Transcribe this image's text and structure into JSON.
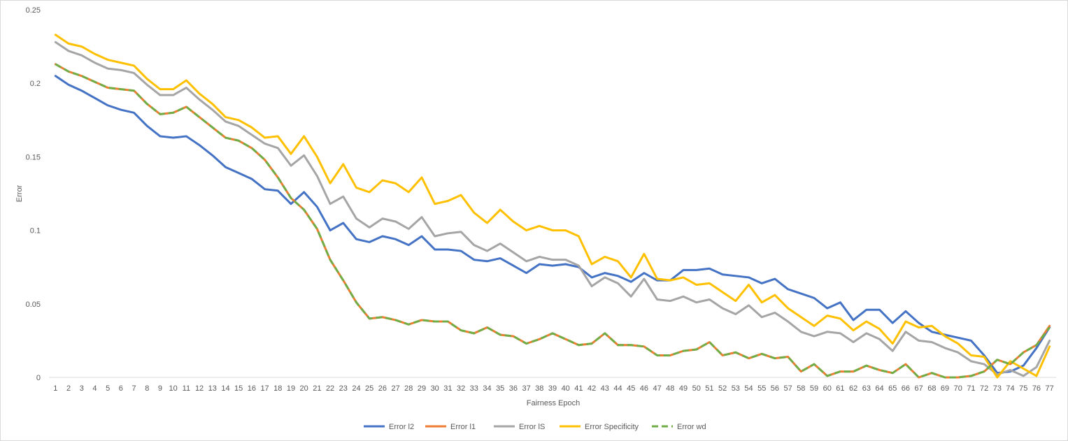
{
  "chart_data": {
    "type": "line",
    "title": "",
    "xlabel": "Fairness Epoch",
    "ylabel": "Error",
    "ylim": [
      0,
      0.25
    ],
    "yticks": [
      "0",
      "0.05",
      "0.1",
      "0.15",
      "0.2",
      "0.25"
    ],
    "grid": false,
    "legend_position": "bottom",
    "categories": [
      1,
      2,
      3,
      4,
      5,
      6,
      7,
      8,
      9,
      10,
      11,
      12,
      13,
      14,
      15,
      16,
      17,
      18,
      19,
      20,
      21,
      22,
      23,
      24,
      25,
      26,
      27,
      28,
      29,
      30,
      31,
      32,
      33,
      34,
      35,
      36,
      37,
      38,
      39,
      40,
      41,
      42,
      43,
      44,
      45,
      46,
      47,
      48,
      49,
      50,
      51,
      52,
      53,
      54,
      55,
      56,
      57,
      58,
      59,
      60,
      61,
      62,
      63,
      64,
      65,
      66,
      67,
      68,
      69,
      70,
      71,
      72,
      73,
      74,
      75,
      76,
      77
    ],
    "series": [
      {
        "name": "Error l2",
        "color": "#4472C4",
        "dash": "solid",
        "values": [
          0.205,
          0.199,
          0.195,
          0.19,
          0.185,
          0.182,
          0.18,
          0.171,
          0.164,
          0.163,
          0.164,
          0.158,
          0.151,
          0.143,
          0.139,
          0.135,
          0.128,
          0.127,
          0.118,
          0.126,
          0.116,
          0.1,
          0.105,
          0.094,
          0.092,
          0.096,
          0.094,
          0.09,
          0.096,
          0.087,
          0.087,
          0.086,
          0.08,
          0.079,
          0.081,
          0.076,
          0.071,
          0.077,
          0.076,
          0.077,
          0.075,
          0.068,
          0.071,
          0.069,
          0.065,
          0.071,
          0.066,
          0.066,
          0.073,
          0.073,
          0.074,
          0.07,
          0.069,
          0.068,
          0.064,
          0.067,
          0.06,
          0.057,
          0.054,
          0.047,
          0.051,
          0.039,
          0.046,
          0.046,
          0.037,
          0.045,
          0.037,
          0.031,
          0.029,
          0.027,
          0.025,
          0.015,
          0.003,
          0.004,
          0.008,
          0.02,
          0.034
        ]
      },
      {
        "name": "Error l1",
        "color": "#ED7D31",
        "dash": "solid",
        "values": [
          0.213,
          0.208,
          0.205,
          0.201,
          0.197,
          0.196,
          0.195,
          0.186,
          0.179,
          0.18,
          0.184,
          0.177,
          0.17,
          0.163,
          0.161,
          0.156,
          0.148,
          0.136,
          0.122,
          0.114,
          0.101,
          0.08,
          0.066,
          0.051,
          0.04,
          0.041,
          0.039,
          0.036,
          0.039,
          0.038,
          0.038,
          0.032,
          0.03,
          0.034,
          0.029,
          0.028,
          0.023,
          0.026,
          0.03,
          0.026,
          0.022,
          0.023,
          0.03,
          0.022,
          0.022,
          0.021,
          0.015,
          0.015,
          0.018,
          0.019,
          0.024,
          0.015,
          0.017,
          0.013,
          0.016,
          0.013,
          0.014,
          0.004,
          0.009,
          0.001,
          0.004,
          0.004,
          0.008,
          0.005,
          0.003,
          0.009,
          0.0,
          0.003,
          0.0,
          0.0,
          0.001,
          0.004,
          0.012,
          0.009,
          0.017,
          0.022,
          0.035
        ]
      },
      {
        "name": "Error lS",
        "color": "#A5A5A5",
        "dash": "solid",
        "values": [
          0.228,
          0.222,
          0.219,
          0.214,
          0.21,
          0.209,
          0.207,
          0.199,
          0.192,
          0.192,
          0.197,
          0.189,
          0.182,
          0.174,
          0.171,
          0.165,
          0.159,
          0.156,
          0.144,
          0.151,
          0.137,
          0.118,
          0.123,
          0.108,
          0.102,
          0.108,
          0.106,
          0.101,
          0.109,
          0.096,
          0.098,
          0.099,
          0.09,
          0.086,
          0.091,
          0.085,
          0.079,
          0.082,
          0.08,
          0.08,
          0.076,
          0.062,
          0.068,
          0.064,
          0.055,
          0.067,
          0.053,
          0.052,
          0.055,
          0.051,
          0.053,
          0.047,
          0.043,
          0.049,
          0.041,
          0.044,
          0.038,
          0.031,
          0.028,
          0.031,
          0.03,
          0.024,
          0.03,
          0.026,
          0.018,
          0.031,
          0.025,
          0.024,
          0.02,
          0.017,
          0.011,
          0.009,
          0.002,
          0.005,
          0.001,
          0.007,
          0.025
        ]
      },
      {
        "name": "Error Specificity",
        "color": "#FFC000",
        "dash": "solid",
        "values": [
          0.233,
          0.227,
          0.225,
          0.22,
          0.216,
          0.214,
          0.212,
          0.203,
          0.196,
          0.196,
          0.202,
          0.193,
          0.186,
          0.177,
          0.175,
          0.17,
          0.163,
          0.164,
          0.152,
          0.164,
          0.15,
          0.132,
          0.145,
          0.129,
          0.126,
          0.134,
          0.132,
          0.126,
          0.136,
          0.118,
          0.12,
          0.124,
          0.112,
          0.105,
          0.114,
          0.106,
          0.1,
          0.103,
          0.1,
          0.1,
          0.096,
          0.077,
          0.082,
          0.079,
          0.068,
          0.084,
          0.067,
          0.066,
          0.068,
          0.063,
          0.064,
          0.058,
          0.052,
          0.063,
          0.051,
          0.056,
          0.047,
          0.041,
          0.035,
          0.042,
          0.04,
          0.032,
          0.038,
          0.033,
          0.023,
          0.038,
          0.034,
          0.035,
          0.028,
          0.023,
          0.015,
          0.014,
          0.0,
          0.011,
          0.006,
          0.001,
          0.021
        ]
      },
      {
        "name": "Error wd",
        "color": "#70AD47",
        "dash": "dashed",
        "values": [
          0.213,
          0.208,
          0.205,
          0.201,
          0.197,
          0.196,
          0.195,
          0.186,
          0.179,
          0.18,
          0.184,
          0.177,
          0.17,
          0.163,
          0.161,
          0.156,
          0.148,
          0.136,
          0.122,
          0.114,
          0.101,
          0.08,
          0.066,
          0.051,
          0.04,
          0.041,
          0.039,
          0.036,
          0.039,
          0.038,
          0.038,
          0.032,
          0.03,
          0.034,
          0.029,
          0.028,
          0.023,
          0.026,
          0.03,
          0.026,
          0.022,
          0.023,
          0.03,
          0.022,
          0.022,
          0.021,
          0.015,
          0.015,
          0.018,
          0.019,
          0.024,
          0.015,
          0.017,
          0.013,
          0.016,
          0.013,
          0.014,
          0.004,
          0.009,
          0.001,
          0.004,
          0.004,
          0.008,
          0.005,
          0.003,
          0.009,
          0.0,
          0.003,
          0.0,
          0.0,
          0.001,
          0.004,
          0.012,
          0.009,
          0.017,
          0.022,
          0.034
        ]
      }
    ]
  }
}
